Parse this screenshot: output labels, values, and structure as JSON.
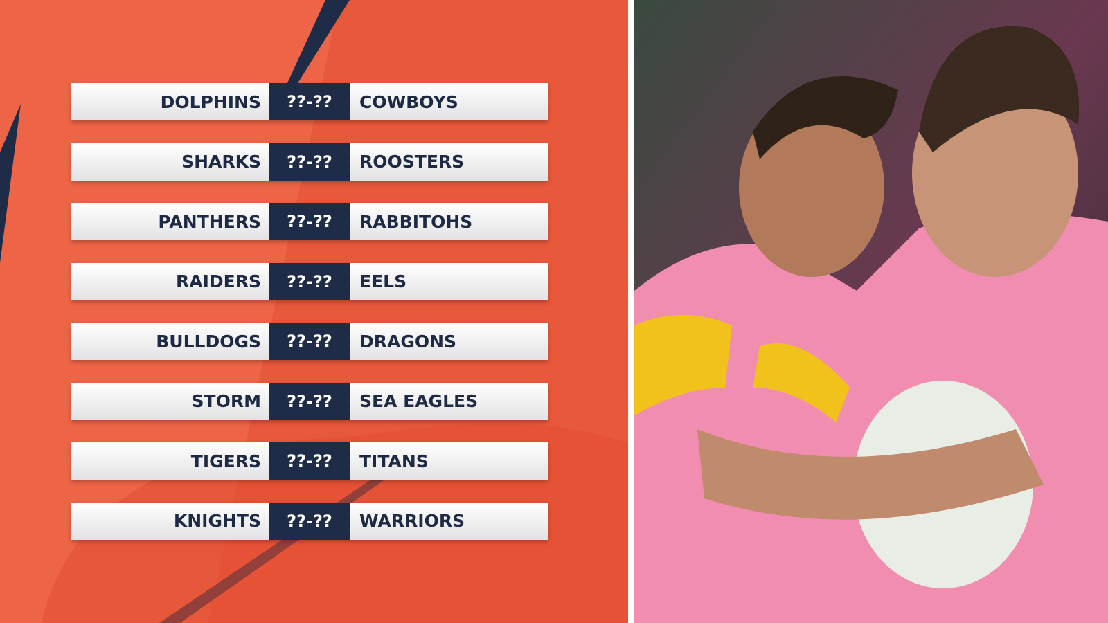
{
  "fixtures": [
    {
      "home": "DOLPHINS",
      "score": "??-??",
      "away": "COWBOYS"
    },
    {
      "home": "SHARKS",
      "score": "??-??",
      "away": "ROOSTERS"
    },
    {
      "home": "PANTHERS",
      "score": "??-??",
      "away": "RABBITOHS"
    },
    {
      "home": "RAIDERS",
      "score": "??-??",
      "away": "EELS"
    },
    {
      "home": "BULLDOGS",
      "score": "??-??",
      "away": "DRAGONS"
    },
    {
      "home": "STORM",
      "score": "??-??",
      "away": "SEA EAGLES"
    },
    {
      "home": "TIGERS",
      "score": "??-??",
      "away": "TITANS"
    },
    {
      "home": "KNIGHTS",
      "score": "??-??",
      "away": "WARRIORS"
    }
  ]
}
